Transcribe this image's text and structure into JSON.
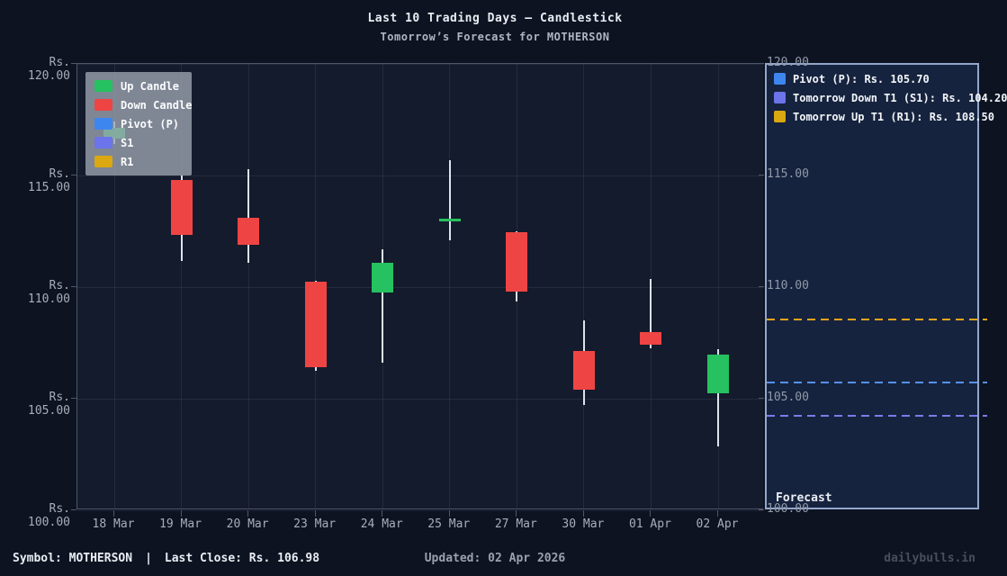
{
  "title": "Last 10 Trading Days – Candlestick",
  "subtitle": "Tomorrow’s Forecast for MOTHERSON",
  "colors": {
    "up": "#26c160",
    "down": "#ef4444",
    "wick": "#dce3ec",
    "pivot": "#3e86ef",
    "s1": "#6b74ea",
    "r1": "#dba812",
    "pivot_line": "#5590ee",
    "s1_line": "#7a7cec",
    "r1_line": "#e8a41c"
  },
  "chart_data": {
    "type": "candlestick",
    "title": "Last 10 Trading Days – Candlestick",
    "subtitle": "Tomorrow’s Forecast for MOTHERSON",
    "ylim": [
      100,
      120
    ],
    "grid": true,
    "left_axis_ticks": [
      {
        "price": 120,
        "label": "Rs. 120.00"
      },
      {
        "price": 115,
        "label": "Rs. 115.00"
      },
      {
        "price": 110,
        "label": "Rs. 110.00"
      },
      {
        "price": 105,
        "label": "Rs. 105.00"
      },
      {
        "price": 100,
        "label": "Rs. 100.00"
      }
    ],
    "right_axis_ticks": [
      {
        "price": 120,
        "label": "120.00"
      },
      {
        "price": 115,
        "label": "115.00"
      },
      {
        "price": 110,
        "label": "110.00"
      },
      {
        "price": 105,
        "label": "105.00"
      },
      {
        "price": 100,
        "label": "100.00"
      }
    ],
    "categories": [
      "18 Mar",
      "19 Mar",
      "20 Mar",
      "23 Mar",
      "24 Mar",
      "25 Mar",
      "27 Mar",
      "30 Mar",
      "01 Apr",
      "02 Apr"
    ],
    "candles": [
      {
        "date": "18 Mar",
        "open": 116.65,
        "high": 117.4,
        "low": 116.4,
        "close": 117.15,
        "dir": "up"
      },
      {
        "date": "19 Mar",
        "open": 114.8,
        "high": 115.0,
        "low": 111.15,
        "close": 112.35,
        "dir": "down"
      },
      {
        "date": "20 Mar",
        "open": 113.1,
        "high": 115.3,
        "low": 111.1,
        "close": 111.9,
        "dir": "down"
      },
      {
        "date": "23 Mar",
        "open": 110.25,
        "high": 110.3,
        "low": 106.25,
        "close": 106.4,
        "dir": "down"
      },
      {
        "date": "24 Mar",
        "open": 109.75,
        "high": 111.7,
        "low": 106.6,
        "close": 111.1,
        "dir": "up"
      },
      {
        "date": "25 Mar",
        "open": 112.95,
        "high": 115.7,
        "low": 112.1,
        "close": 113.05,
        "dir": "up"
      },
      {
        "date": "27 Mar",
        "open": 112.45,
        "high": 112.5,
        "low": 109.35,
        "close": 109.8,
        "dir": "down"
      },
      {
        "date": "30 Mar",
        "open": 107.15,
        "high": 108.5,
        "low": 104.7,
        "close": 105.4,
        "dir": "down"
      },
      {
        "date": "01 Apr",
        "open": 108.0,
        "high": 110.35,
        "low": 107.25,
        "close": 107.4,
        "dir": "down"
      },
      {
        "date": "02 Apr",
        "open": 105.25,
        "high": 107.2,
        "low": 102.85,
        "close": 106.98,
        "dir": "up"
      }
    ],
    "legend": [
      {
        "label": "Up Candle",
        "color_key": "up"
      },
      {
        "label": "Down Candle",
        "color_key": "down"
      },
      {
        "label": "Pivot (P)",
        "color_key": "pivot"
      },
      {
        "label": "S1",
        "color_key": "s1"
      },
      {
        "label": "R1",
        "color_key": "r1"
      }
    ],
    "forecast": {
      "panel_label": "Forecast",
      "legend": [
        {
          "label": "Pivot (P): Rs. 105.70",
          "color_key": "pivot"
        },
        {
          "label": "Tomorrow Down T1 (S1): Rs. 104.20",
          "color_key": "s1"
        },
        {
          "label": "Tomorrow Up T1 (R1): Rs. 108.50",
          "color_key": "r1"
        }
      ],
      "lines": [
        {
          "name": "r1-line",
          "price": 108.5,
          "color_key": "r1_line"
        },
        {
          "name": "pivot-line",
          "price": 105.7,
          "color_key": "pivot_line"
        },
        {
          "name": "s1-line",
          "price": 104.2,
          "color_key": "s1_line"
        }
      ]
    }
  },
  "status_bar": {
    "symbol_label": "Symbol: MOTHERSON",
    "separator": "|",
    "last_close_label": "Last Close: Rs. 106.98",
    "updated_label": "Updated: 02 Apr 2026",
    "watermark": "dailybulls.in"
  }
}
